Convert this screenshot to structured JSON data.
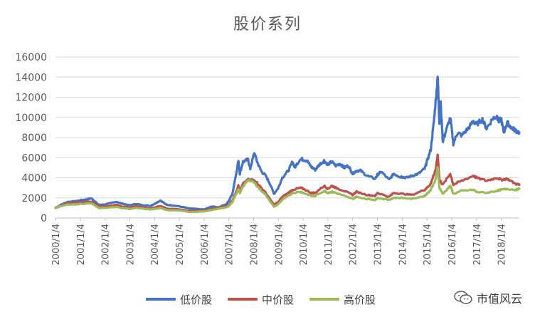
{
  "chart_data": {
    "type": "line",
    "title": "股价系列",
    "xlabel": "",
    "ylabel": "",
    "ylim": [
      0,
      16000
    ],
    "yticks": [
      0,
      2000,
      4000,
      6000,
      8000,
      10000,
      12000,
      14000,
      16000
    ],
    "xlim": [
      "2000-01-04",
      "2018-09-28"
    ],
    "xticks": [
      "2000/1/4",
      "2001/1/4",
      "2002/1/4",
      "2003/1/4",
      "2004/1/4",
      "2005/1/4",
      "2006/1/4",
      "2007/1/4",
      "2008/1/4",
      "2009/1/4",
      "2010/1/4",
      "2011/1/4",
      "2012/1/4",
      "2013/1/4",
      "2014/1/4",
      "2015/1/4",
      "2016/1/4",
      "2017/1/4",
      "2018/1/4"
    ],
    "grid": true,
    "legend": "bottom",
    "series": [
      {
        "name": "低价股",
        "color": "#4472C4",
        "points": [
          [
            "2000-01-04",
            1000
          ],
          [
            "2000-04-01",
            1350
          ],
          [
            "2000-07-01",
            1600
          ],
          [
            "2000-10-01",
            1650
          ],
          [
            "2001-01-04",
            1750
          ],
          [
            "2001-04-01",
            1850
          ],
          [
            "2001-06-15",
            1950
          ],
          [
            "2001-08-01",
            1700
          ],
          [
            "2001-10-01",
            1300
          ],
          [
            "2002-01-04",
            1350
          ],
          [
            "2002-06-25",
            1600
          ],
          [
            "2002-09-01",
            1450
          ],
          [
            "2003-01-04",
            1250
          ],
          [
            "2003-04-01",
            1400
          ],
          [
            "2003-07-01",
            1300
          ],
          [
            "2003-11-01",
            1200
          ],
          [
            "2004-01-04",
            1400
          ],
          [
            "2004-04-01",
            1750
          ],
          [
            "2004-07-01",
            1300
          ],
          [
            "2004-10-01",
            1250
          ],
          [
            "2005-01-04",
            1150
          ],
          [
            "2005-06-01",
            950
          ],
          [
            "2005-09-01",
            900
          ],
          [
            "2006-01-04",
            850
          ],
          [
            "2006-05-01",
            1150
          ],
          [
            "2006-08-01",
            1050
          ],
          [
            "2006-12-01",
            1400
          ],
          [
            "2007-01-04",
            1700
          ],
          [
            "2007-03-01",
            2500
          ],
          [
            "2007-05-25",
            5700
          ],
          [
            "2007-06-15",
            4400
          ],
          [
            "2007-08-01",
            5600
          ],
          [
            "2007-10-15",
            5800
          ],
          [
            "2007-11-15",
            4900
          ],
          [
            "2008-01-15",
            6500
          ],
          [
            "2008-03-01",
            5500
          ],
          [
            "2008-05-01",
            4600
          ],
          [
            "2008-07-01",
            4200
          ],
          [
            "2008-09-01",
            3400
          ],
          [
            "2008-11-01",
            2400
          ],
          [
            "2009-01-04",
            3000
          ],
          [
            "2009-03-01",
            4000
          ],
          [
            "2009-06-01",
            4700
          ],
          [
            "2009-08-01",
            5600
          ],
          [
            "2009-09-01",
            5000
          ],
          [
            "2009-11-25",
            5900
          ],
          [
            "2010-01-04",
            5800
          ],
          [
            "2010-03-01",
            5700
          ],
          [
            "2010-05-01",
            5100
          ],
          [
            "2010-07-01",
            4800
          ],
          [
            "2010-09-01",
            5300
          ],
          [
            "2010-11-10",
            5700
          ],
          [
            "2011-01-04",
            5300
          ],
          [
            "2011-03-01",
            5600
          ],
          [
            "2011-05-01",
            5200
          ],
          [
            "2011-07-01",
            5400
          ],
          [
            "2011-09-01",
            5000
          ],
          [
            "2011-11-01",
            5200
          ],
          [
            "2012-01-04",
            4400
          ],
          [
            "2012-03-01",
            4700
          ],
          [
            "2012-05-01",
            4700
          ],
          [
            "2012-08-01",
            4200
          ],
          [
            "2012-12-01",
            3900
          ],
          [
            "2013-01-04",
            4300
          ],
          [
            "2013-03-01",
            4600
          ],
          [
            "2013-06-25",
            3800
          ],
          [
            "2013-09-01",
            4400
          ],
          [
            "2013-12-01",
            4100
          ],
          [
            "2014-01-04",
            4100
          ],
          [
            "2014-03-01",
            4000
          ],
          [
            "2014-06-01",
            4200
          ],
          [
            "2014-09-01",
            4400
          ],
          [
            "2014-12-01",
            4900
          ],
          [
            "2015-01-04",
            5600
          ],
          [
            "2015-03-01",
            6800
          ],
          [
            "2015-04-15",
            9500
          ],
          [
            "2015-05-15",
            11800
          ],
          [
            "2015-06-12",
            14000
          ],
          [
            "2015-07-08",
            9400
          ],
          [
            "2015-07-25",
            11500
          ],
          [
            "2015-08-26",
            7600
          ],
          [
            "2015-10-01",
            8400
          ],
          [
            "2015-12-15",
            10000
          ],
          [
            "2016-01-28",
            7400
          ],
          [
            "2016-04-01",
            8500
          ],
          [
            "2016-06-01",
            8200
          ],
          [
            "2016-09-01",
            8900
          ],
          [
            "2016-11-20",
            9600
          ],
          [
            "2017-01-04",
            9300
          ],
          [
            "2017-04-01",
            9800
          ],
          [
            "2017-06-01",
            8900
          ],
          [
            "2017-09-01",
            9900
          ],
          [
            "2017-11-01",
            10100
          ],
          [
            "2017-12-01",
            9600
          ],
          [
            "2018-01-04",
            9800
          ],
          [
            "2018-02-10",
            8500
          ],
          [
            "2018-04-01",
            9500
          ],
          [
            "2018-06-01",
            9000
          ],
          [
            "2018-08-01",
            8700
          ],
          [
            "2018-09-28",
            8500
          ]
        ]
      },
      {
        "name": "中价股",
        "color": "#C0504D",
        "points": [
          [
            "2000-01-04",
            1000
          ],
          [
            "2000-04-01",
            1250
          ],
          [
            "2000-07-01",
            1450
          ],
          [
            "2000-10-01",
            1500
          ],
          [
            "2001-01-04",
            1550
          ],
          [
            "2001-06-15",
            1650
          ],
          [
            "2001-10-01",
            1150
          ],
          [
            "2002-01-04",
            1150
          ],
          [
            "2002-06-25",
            1300
          ],
          [
            "2002-09-01",
            1150
          ],
          [
            "2003-01-04",
            1050
          ],
          [
            "2003-04-01",
            1150
          ],
          [
            "2003-11-01",
            950
          ],
          [
            "2004-01-04",
            1050
          ],
          [
            "2004-04-01",
            1200
          ],
          [
            "2004-07-01",
            950
          ],
          [
            "2005-01-04",
            850
          ],
          [
            "2005-06-01",
            700
          ],
          [
            "2006-01-04",
            750
          ],
          [
            "2006-06-01",
            950
          ],
          [
            "2006-12-01",
            1150
          ],
          [
            "2007-01-04",
            1300
          ],
          [
            "2007-03-01",
            1800
          ],
          [
            "2007-05-25",
            3200
          ],
          [
            "2007-06-15",
            2700
          ],
          [
            "2007-08-01",
            3400
          ],
          [
            "2007-10-15",
            3800
          ],
          [
            "2008-01-15",
            3800
          ],
          [
            "2008-04-01",
            3200
          ],
          [
            "2008-07-01",
            2500
          ],
          [
            "2008-11-01",
            1300
          ],
          [
            "2009-01-04",
            1600
          ],
          [
            "2009-03-01",
            2100
          ],
          [
            "2009-06-01",
            2500
          ],
          [
            "2009-08-01",
            2800
          ],
          [
            "2009-11-25",
            3000
          ],
          [
            "2010-01-04",
            2900
          ],
          [
            "2010-05-01",
            2500
          ],
          [
            "2010-07-01",
            2500
          ],
          [
            "2010-11-10",
            3200
          ],
          [
            "2011-01-04",
            2900
          ],
          [
            "2011-03-01",
            3200
          ],
          [
            "2011-05-01",
            3000
          ],
          [
            "2011-09-01",
            2700
          ],
          [
            "2012-01-04",
            2300
          ],
          [
            "2012-03-01",
            2600
          ],
          [
            "2012-08-01",
            2300
          ],
          [
            "2012-12-01",
            2200
          ],
          [
            "2013-01-04",
            2500
          ],
          [
            "2013-06-25",
            2100
          ],
          [
            "2013-09-01",
            2500
          ],
          [
            "2014-01-04",
            2400
          ],
          [
            "2014-06-01",
            2300
          ],
          [
            "2014-12-01",
            2800
          ],
          [
            "2015-01-04",
            3000
          ],
          [
            "2015-03-01",
            3400
          ],
          [
            "2015-05-15",
            4900
          ],
          [
            "2015-06-12",
            6300
          ],
          [
            "2015-07-08",
            3800
          ],
          [
            "2015-08-26",
            3300
          ],
          [
            "2015-12-15",
            4400
          ],
          [
            "2016-01-28",
            3300
          ],
          [
            "2016-06-01",
            3700
          ],
          [
            "2016-11-20",
            4200
          ],
          [
            "2017-01-04",
            4000
          ],
          [
            "2017-06-01",
            3700
          ],
          [
            "2017-11-01",
            4000
          ],
          [
            "2018-01-04",
            3800
          ],
          [
            "2018-04-01",
            3900
          ],
          [
            "2018-08-01",
            3400
          ],
          [
            "2018-09-28",
            3300
          ]
        ]
      },
      {
        "name": "高价股",
        "color": "#9BBB59",
        "points": [
          [
            "2000-01-04",
            1000
          ],
          [
            "2000-04-01",
            1200
          ],
          [
            "2000-07-01",
            1350
          ],
          [
            "2000-10-01",
            1350
          ],
          [
            "2001-01-04",
            1400
          ],
          [
            "2001-06-15",
            1450
          ],
          [
            "2001-10-01",
            1000
          ],
          [
            "2002-01-04",
            1000
          ],
          [
            "2002-06-25",
            1100
          ],
          [
            "2002-09-01",
            1000
          ],
          [
            "2003-01-04",
            900
          ],
          [
            "2003-04-01",
            1000
          ],
          [
            "2003-11-01",
            850
          ],
          [
            "2004-01-04",
            900
          ],
          [
            "2004-04-01",
            1000
          ],
          [
            "2004-07-01",
            800
          ],
          [
            "2005-01-04",
            750
          ],
          [
            "2005-06-01",
            600
          ],
          [
            "2006-01-04",
            650
          ],
          [
            "2006-06-01",
            850
          ],
          [
            "2006-12-01",
            1050
          ],
          [
            "2007-01-04",
            1200
          ],
          [
            "2007-03-01",
            1600
          ],
          [
            "2007-05-25",
            2900
          ],
          [
            "2007-06-15",
            2500
          ],
          [
            "2007-08-01",
            3100
          ],
          [
            "2007-10-15",
            3800
          ],
          [
            "2008-01-15",
            3500
          ],
          [
            "2008-04-01",
            2900
          ],
          [
            "2008-07-01",
            2300
          ],
          [
            "2008-11-01",
            1100
          ],
          [
            "2009-01-04",
            1400
          ],
          [
            "2009-03-01",
            1800
          ],
          [
            "2009-06-01",
            2200
          ],
          [
            "2009-08-01",
            2500
          ],
          [
            "2009-11-25",
            2600
          ],
          [
            "2010-01-04",
            2500
          ],
          [
            "2010-05-01",
            2200
          ],
          [
            "2010-07-01",
            2200
          ],
          [
            "2010-11-10",
            2700
          ],
          [
            "2011-01-04",
            2500
          ],
          [
            "2011-03-01",
            2600
          ],
          [
            "2011-05-01",
            2500
          ],
          [
            "2011-09-01",
            2200
          ],
          [
            "2012-01-04",
            1900
          ],
          [
            "2012-03-01",
            2100
          ],
          [
            "2012-08-01",
            1900
          ],
          [
            "2012-12-01",
            1800
          ],
          [
            "2013-01-04",
            2000
          ],
          [
            "2013-06-25",
            1800
          ],
          [
            "2013-09-01",
            2000
          ],
          [
            "2014-01-04",
            2000
          ],
          [
            "2014-06-01",
            1900
          ],
          [
            "2014-12-01",
            2200
          ],
          [
            "2015-01-04",
            2400
          ],
          [
            "2015-03-01",
            2800
          ],
          [
            "2015-05-15",
            3900
          ],
          [
            "2015-06-12",
            5000
          ],
          [
            "2015-07-08",
            3000
          ],
          [
            "2015-08-26",
            2400
          ],
          [
            "2015-12-15",
            3200
          ],
          [
            "2016-01-28",
            2400
          ],
          [
            "2016-06-01",
            2700
          ],
          [
            "2016-11-20",
            2800
          ],
          [
            "2017-01-04",
            2600
          ],
          [
            "2017-06-01",
            2500
          ],
          [
            "2017-11-01",
            2700
          ],
          [
            "2018-01-04",
            2800
          ],
          [
            "2018-04-01",
            2900
          ],
          [
            "2018-08-01",
            2800
          ],
          [
            "2018-09-28",
            2900
          ]
        ]
      }
    ]
  },
  "watermark": {
    "label": "市值风云"
  }
}
